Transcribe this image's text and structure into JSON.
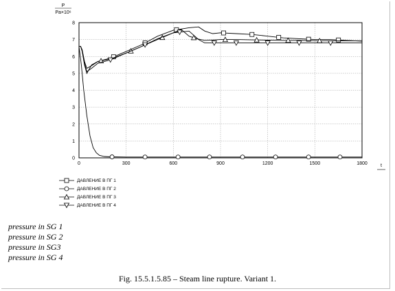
{
  "chart_data": {
    "type": "line",
    "ylabel_top": "P",
    "ylabel_unit": "Pa×10⁶",
    "xlabel_top": "t",
    "xlabel_unit": "s",
    "xlim": [
      0,
      1800
    ],
    "ylim": [
      0,
      8
    ],
    "x_ticks": [
      "0",
      "300",
      "600",
      "900",
      "1200",
      "1500",
      "1800"
    ],
    "y_ticks": [
      "0",
      "1",
      "2",
      "3",
      "4",
      "5",
      "6",
      "7",
      "8"
    ],
    "grid": true,
    "series": [
      {
        "name": "ДАВЛЕНИЕ В ПГ 1",
        "marker": "square",
        "x": [
          0,
          10,
          20,
          35,
          50,
          80,
          120,
          200,
          300,
          400,
          500,
          600,
          700,
          760,
          800,
          850,
          900,
          1000,
          1100,
          1200,
          1300,
          1400,
          1500,
          1600,
          1700,
          1800
        ],
        "y": [
          6.6,
          6.6,
          6.4,
          5.7,
          5.3,
          5.45,
          5.7,
          5.9,
          6.3,
          6.7,
          7.2,
          7.55,
          7.7,
          7.75,
          7.5,
          7.35,
          7.4,
          7.35,
          7.3,
          7.2,
          7.1,
          7.05,
          7.0,
          7.0,
          6.95,
          6.9
        ]
      },
      {
        "name": "ДАВЛЕНИЕ В ПГ 2",
        "marker": "circle",
        "x": [
          0,
          15,
          30,
          50,
          70,
          90,
          110,
          130,
          160,
          200,
          300,
          600,
          900,
          1200,
          1500,
          1800
        ],
        "y": [
          6.6,
          5.5,
          4.0,
          2.5,
          1.3,
          0.6,
          0.3,
          0.15,
          0.08,
          0.06,
          0.05,
          0.05,
          0.05,
          0.05,
          0.05,
          0.05
        ]
      },
      {
        "name": "ДАВЛЕНИЕ В ПГ 3",
        "marker": "triangle-up",
        "x": [
          0,
          10,
          20,
          35,
          50,
          80,
          120,
          200,
          300,
          400,
          500,
          600,
          650,
          700,
          750,
          800,
          900,
          1000,
          1100,
          1200,
          1300,
          1400,
          1500,
          1600,
          1700,
          1800
        ],
        "y": [
          6.6,
          6.6,
          6.3,
          5.5,
          5.0,
          5.5,
          5.7,
          5.85,
          6.2,
          6.6,
          7.0,
          7.4,
          7.6,
          7.2,
          7.05,
          6.95,
          7.0,
          7.0,
          6.98,
          6.97,
          6.95,
          6.95,
          6.93,
          6.92,
          6.92,
          6.92
        ]
      },
      {
        "name": "ДАВЛЕНИЕ В ПГ 4",
        "marker": "triangle-down",
        "x": [
          0,
          10,
          20,
          35,
          50,
          80,
          120,
          200,
          300,
          400,
          500,
          600,
          700,
          760,
          800,
          900,
          1000,
          1200,
          1400,
          1600,
          1800
        ],
        "y": [
          6.6,
          6.6,
          6.35,
          5.6,
          5.1,
          5.3,
          5.6,
          5.8,
          6.2,
          6.6,
          7.05,
          7.4,
          7.5,
          7.0,
          6.8,
          6.8,
          6.8,
          6.8,
          6.8,
          6.8,
          6.8
        ]
      }
    ]
  },
  "notes": [
    "pressure in SG 1",
    "pressure in SG 2",
    "pressure in SG3",
    "pressure in SG 4"
  ],
  "caption": "Fig. 15.5.1.5.85 –   Steam line rupture. Variant 1."
}
